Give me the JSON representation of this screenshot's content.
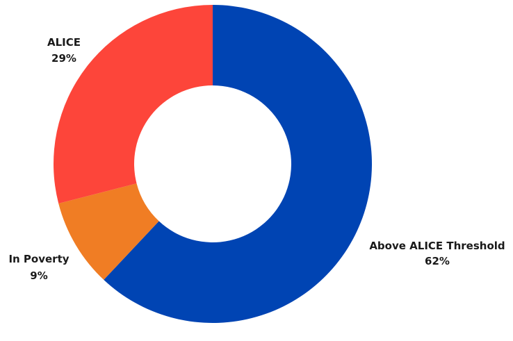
{
  "chart_data": {
    "type": "pie",
    "donut": true,
    "categories": [
      "Above ALICE Threshold",
      "In Poverty",
      "ALICE"
    ],
    "values": [
      62,
      9,
      29
    ],
    "value_labels": [
      "62%",
      "9%",
      "29%"
    ],
    "colors": [
      "#0044b3",
      "#f07d24",
      "#fd453a"
    ],
    "title": "",
    "legend": "none"
  }
}
